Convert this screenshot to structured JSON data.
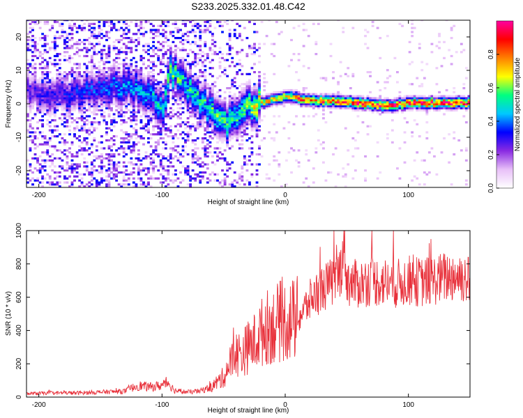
{
  "title": "S233.2025.332.01.48.C42",
  "chart_data": [
    {
      "type": "heatmap",
      "name": "spectrogram",
      "xlabel": "Height of straight line (km)",
      "ylabel": "Frequency (Hz)",
      "xlim": [
        -210,
        150
      ],
      "ylim": [
        -25,
        25
      ],
      "xticks": [
        -200,
        -100,
        0,
        100
      ],
      "yticks": [
        -20,
        -10,
        0,
        10,
        20
      ],
      "colorbar": {
        "label": "Normalized spectral amplitude",
        "range": [
          0,
          1
        ],
        "ticks": [
          0.0,
          0.2,
          0.4,
          0.6,
          0.8
        ],
        "tick_labels": [
          "0.0",
          "0.2",
          "0.4",
          "0.6",
          "0.8"
        ],
        "colors": [
          "#ffffff",
          "#e8c0f8",
          "#8a2be2",
          "#0000ff",
          "#00c8ff",
          "#00ff80",
          "#ffff00",
          "#ff8000",
          "#ff0000",
          "#ff00a0"
        ]
      },
      "ridge": {
        "description": "dominant frequency track vs height",
        "x": [
          -210,
          -180,
          -150,
          -130,
          -110,
          -100,
          -95,
          -85,
          -75,
          -65,
          -50,
          -40,
          -30,
          -20,
          -10,
          0,
          20,
          40,
          60,
          80,
          100,
          120,
          150
        ],
        "y": [
          4,
          2,
          5,
          5,
          3,
          -3,
          10,
          7,
          3,
          -1,
          -6,
          -4,
          -1,
          0,
          1,
          2,
          0.5,
          0.5,
          0,
          -1,
          0,
          0,
          0
        ],
        "peak_amplitude": [
          0.25,
          0.3,
          0.35,
          0.4,
          0.45,
          0.5,
          0.55,
          0.5,
          0.5,
          0.5,
          0.55,
          0.5,
          0.6,
          0.65,
          0.7,
          0.75,
          0.8,
          0.85,
          0.9,
          0.9,
          0.88,
          0.9,
          0.85
        ]
      }
    },
    {
      "type": "line",
      "name": "snr",
      "xlabel": "Height of straight line (km)",
      "ylabel": "SNR (10 * v/v)",
      "xlim": [
        -210,
        150
      ],
      "ylim": [
        0,
        1000
      ],
      "xticks": [
        -200,
        -100,
        0,
        100
      ],
      "yticks": [
        0,
        200,
        400,
        600,
        800,
        1000
      ],
      "color": "#e8303a",
      "series": [
        {
          "name": "SNR",
          "x": [
            -210,
            -190,
            -170,
            -150,
            -130,
            -120,
            -110,
            -100,
            -95,
            -90,
            -80,
            -70,
            -60,
            -50,
            -45,
            -40,
            -35,
            -30,
            -25,
            -20,
            -15,
            -10,
            -5,
            0,
            5,
            10,
            15,
            20,
            25,
            30,
            40,
            45,
            48,
            50,
            55,
            60,
            70,
            80,
            90,
            100,
            110,
            120,
            130,
            140,
            145,
            150
          ],
          "y": [
            20,
            25,
            25,
            30,
            35,
            70,
            60,
            70,
            90,
            40,
            30,
            35,
            60,
            120,
            200,
            260,
            260,
            300,
            330,
            380,
            420,
            430,
            450,
            460,
            460,
            470,
            520,
            580,
            620,
            650,
            700,
            760,
            960,
            700,
            680,
            680,
            700,
            690,
            680,
            700,
            690,
            700,
            720,
            730,
            720,
            700
          ]
        }
      ]
    }
  ]
}
